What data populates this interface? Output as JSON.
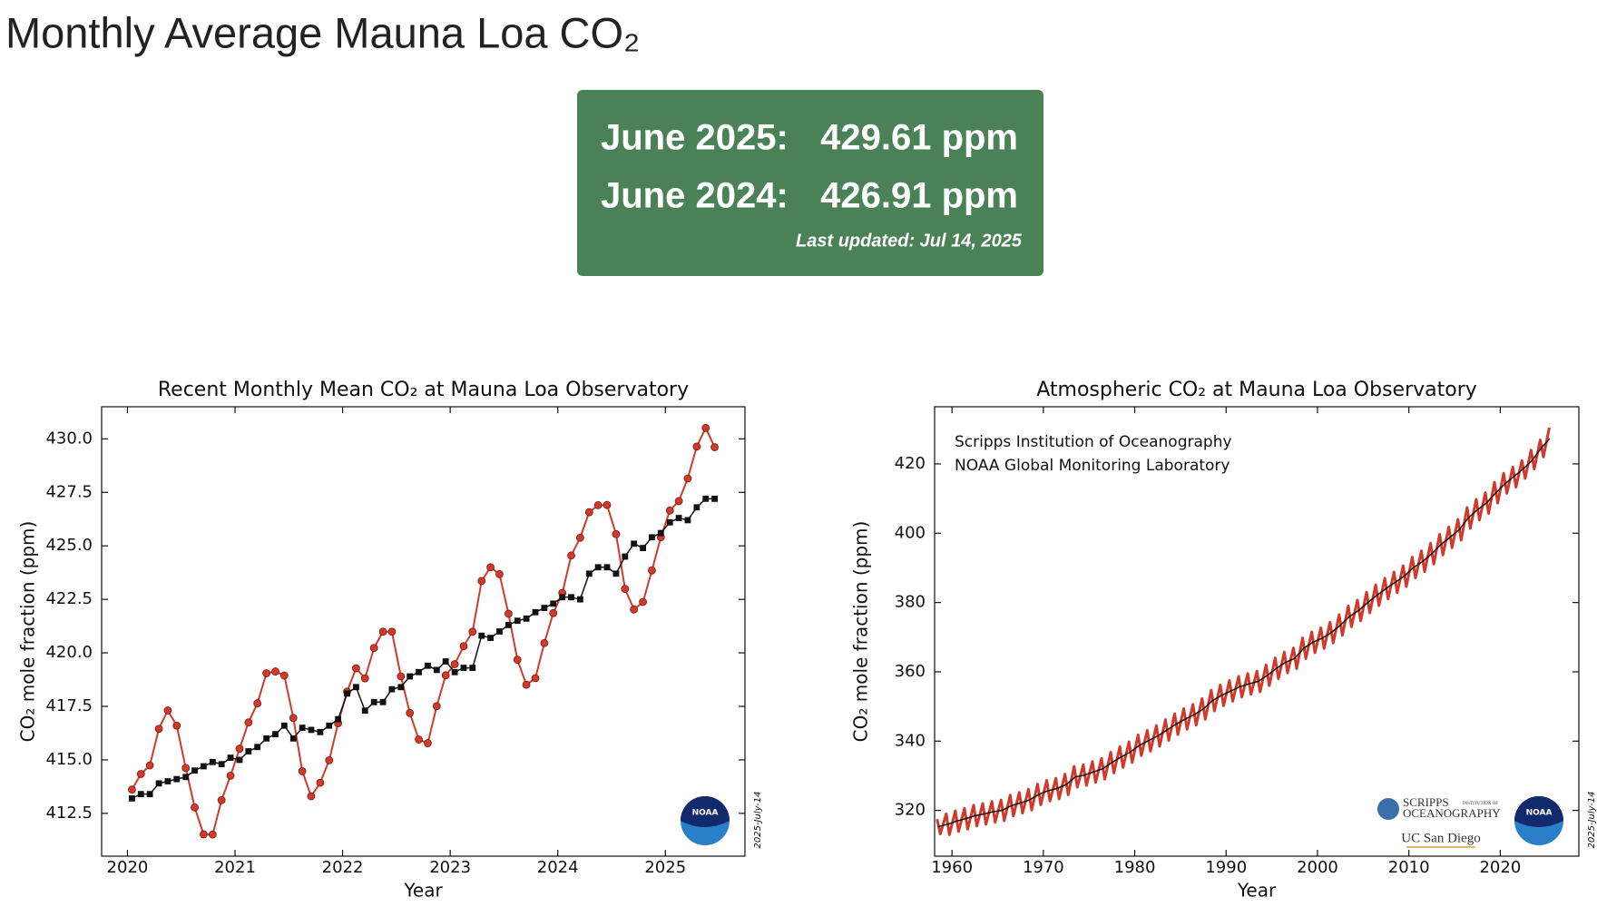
{
  "header": {
    "title": "Monthly Average Mauna Loa CO₂"
  },
  "summary": {
    "rows": [
      {
        "label": "June 2025:",
        "value": "429.61 ppm"
      },
      {
        "label": "June 2024:",
        "value": "426.91 ppm"
      }
    ],
    "updated": "Last updated: Jul 14, 2025"
  },
  "chart_data": [
    {
      "type": "line",
      "title": "Recent Monthly Mean CO₂ at Mauna Loa Observatory",
      "x_label": "Year",
      "y_label": "CO₂ mole fraction (ppm)",
      "date_stamp": "2025-July-14",
      "noaa_logo": "NOAA",
      "xlim": [
        2019.76,
        2025.74
      ],
      "xticks": [
        2020,
        2021,
        2022,
        2023,
        2024,
        2025
      ],
      "ylim": [
        410.5,
        431.5
      ],
      "yticks": [
        {
          "value": 412.5,
          "label": "412.5"
        },
        {
          "value": 415,
          "label": "415.0"
        },
        {
          "value": 417.5,
          "label": "417.5"
        },
        {
          "value": 420,
          "label": "420.0"
        },
        {
          "value": 422.5,
          "label": "422.5"
        },
        {
          "value": 425,
          "label": "425.0"
        },
        {
          "value": 427.5,
          "label": "427.5"
        },
        {
          "value": 430,
          "label": "430.0"
        }
      ],
      "x": [
        2020.042,
        2020.125,
        2020.208,
        2020.292,
        2020.375,
        2020.458,
        2020.542,
        2020.625,
        2020.708,
        2020.792,
        2020.875,
        2020.958,
        2021.042,
        2021.125,
        2021.208,
        2021.292,
        2021.375,
        2021.458,
        2021.542,
        2021.625,
        2021.708,
        2021.792,
        2021.875,
        2021.958,
        2022.042,
        2022.125,
        2022.208,
        2022.292,
        2022.375,
        2022.458,
        2022.542,
        2022.625,
        2022.708,
        2022.792,
        2022.875,
        2022.958,
        2023.042,
        2023.125,
        2023.208,
        2023.292,
        2023.375,
        2023.458,
        2023.542,
        2023.625,
        2023.708,
        2023.792,
        2023.875,
        2023.958,
        2024.042,
        2024.125,
        2024.208,
        2024.292,
        2024.375,
        2024.458,
        2024.542,
        2024.625,
        2024.708,
        2024.792,
        2024.875,
        2024.958,
        2025.042,
        2025.125,
        2025.208,
        2025.292,
        2025.375,
        2025.458
      ],
      "series": [
        {
          "color": "#d13a2a",
          "marker": "circle",
          "line_width": 2,
          "values": [
            413.61,
            414.34,
            414.74,
            416.45,
            417.31,
            416.6,
            414.62,
            412.78,
            411.52,
            411.51,
            413.12,
            414.26,
            415.52,
            416.75,
            417.64,
            419.05,
            419.13,
            418.94,
            416.96,
            414.47,
            413.3,
            413.93,
            414.98,
            416.71,
            418.19,
            419.28,
            418.81,
            420.23,
            420.99,
            420.99,
            418.9,
            417.19,
            415.95,
            415.78,
            417.51,
            418.95,
            419.47,
            420.31,
            420.99,
            423.36,
            424.0,
            423.68,
            421.83,
            419.68,
            418.51,
            418.82,
            420.46,
            421.86,
            422.8,
            424.55,
            425.38,
            426.57,
            426.9,
            426.91,
            425.55,
            422.99,
            422.03,
            422.38,
            423.85,
            425.4,
            426.65,
            427.09,
            428.15,
            429.64,
            430.51,
            429.61
          ]
        },
        {
          "color": "#111111",
          "marker": "square",
          "line_width": 1.5,
          "values": [
            413.2,
            413.4,
            413.4,
            413.9,
            414.0,
            414.1,
            414.2,
            414.5,
            414.7,
            414.9,
            414.8,
            415.1,
            415.0,
            415.4,
            415.6,
            416.0,
            416.2,
            416.6,
            416.0,
            416.5,
            416.4,
            416.3,
            416.6,
            416.9,
            418.1,
            418.4,
            417.3,
            417.7,
            417.7,
            418.3,
            418.4,
            418.9,
            419.1,
            419.4,
            419.2,
            419.6,
            419.1,
            419.3,
            419.3,
            420.8,
            420.7,
            421.0,
            421.3,
            421.5,
            421.6,
            421.9,
            422.1,
            422.3,
            422.6,
            422.6,
            422.5,
            423.7,
            424.0,
            424.0,
            423.7,
            424.5,
            425.1,
            424.9,
            425.4,
            425.6,
            426.1,
            426.3,
            426.2,
            426.8,
            427.2,
            427.2
          ]
        }
      ]
    },
    {
      "type": "line",
      "title": "Atmospheric CO₂ at Mauna Loa Observatory",
      "x_label": "Year",
      "y_label": "CO₂ mole fraction (ppm)",
      "date_stamp": "2025-July-14",
      "noaa_logo": "NOAA",
      "annotations": [
        "Scripps Institution of Oceanography",
        "NOAA Global Monitoring Laboratory"
      ],
      "scripps_logo": {
        "name": "SCRIPPS",
        "small": "INSTITUTION OF",
        "sub": "OCEANOGRAPHY",
        "university": "UC San Diego"
      },
      "xlim": [
        1958.1,
        2028.6
      ],
      "xticks": [
        1960,
        1970,
        1980,
        1990,
        2000,
        2010,
        2020
      ],
      "ylim": [
        306.8,
        436.5
      ],
      "yticks": [
        320,
        340,
        360,
        380,
        400,
        420
      ],
      "series": [
        {
          "color": "#d13a2a",
          "line_width": 3,
          "x": [
            1958.37,
            1958.72,
            1959.37,
            1959.72,
            1960.37,
            1960.72,
            1961.37,
            1961.72,
            1962.37,
            1962.72,
            1963.37,
            1963.72,
            1964.37,
            1964.72,
            1965.37,
            1965.72,
            1966.37,
            1966.72,
            1967.37,
            1967.72,
            1968.37,
            1968.72,
            1969.37,
            1969.72,
            1970.37,
            1970.72,
            1971.37,
            1971.72,
            1972.37,
            1972.72,
            1973.37,
            1973.72,
            1974.37,
            1974.72,
            1975.37,
            1975.72,
            1976.37,
            1976.72,
            1977.37,
            1977.72,
            1978.37,
            1978.72,
            1979.37,
            1979.72,
            1980.37,
            1980.72,
            1981.37,
            1981.72,
            1982.37,
            1982.72,
            1983.37,
            1983.72,
            1984.37,
            1984.72,
            1985.37,
            1985.72,
            1986.37,
            1986.72,
            1987.37,
            1987.72,
            1988.37,
            1988.72,
            1989.37,
            1989.72,
            1990.37,
            1990.72,
            1991.37,
            1991.72,
            1992.37,
            1992.72,
            1993.37,
            1993.72,
            1994.37,
            1994.72,
            1995.37,
            1995.72,
            1996.37,
            1996.72,
            1997.37,
            1997.72,
            1998.37,
            1998.72,
            1999.37,
            1999.72,
            2000.37,
            2000.72,
            2001.37,
            2001.72,
            2002.37,
            2002.72,
            2003.37,
            2003.72,
            2004.37,
            2004.72,
            2005.37,
            2005.72,
            2006.37,
            2006.72,
            2007.37,
            2007.72,
            2008.37,
            2008.72,
            2009.37,
            2009.72,
            2010.37,
            2010.72,
            2011.37,
            2011.72,
            2012.37,
            2012.72,
            2013.37,
            2013.72,
            2014.37,
            2014.72,
            2015.37,
            2015.72,
            2016.37,
            2016.72,
            2017.37,
            2017.72,
            2018.37,
            2018.72,
            2019.37,
            2019.72,
            2020.37,
            2020.72,
            2021.37,
            2021.72,
            2022.37,
            2022.72,
            2023.37,
            2023.72,
            2024.37,
            2024.72,
            2025.37
          ],
          "values": [
            317.5,
            313.2,
            319.0,
            313.0,
            319.9,
            313.9,
            320.6,
            314.6,
            321.5,
            315.5,
            322.0,
            316.0,
            322.6,
            316.6,
            323.0,
            317.0,
            324.4,
            318.4,
            325.2,
            319.2,
            326.1,
            320.1,
            327.6,
            321.6,
            328.7,
            322.7,
            329.3,
            323.3,
            330.5,
            324.5,
            332.7,
            326.7,
            333.2,
            327.2,
            334.1,
            328.1,
            335.0,
            329.0,
            336.8,
            330.8,
            338.4,
            332.4,
            339.8,
            333.8,
            341.8,
            335.8,
            343.1,
            337.1,
            344.5,
            338.5,
            346.2,
            340.2,
            347.9,
            341.9,
            349.4,
            343.4,
            350.6,
            344.6,
            352.3,
            346.3,
            354.7,
            348.7,
            356.2,
            350.2,
            357.5,
            351.5,
            358.7,
            352.7,
            359.5,
            353.5,
            360.2,
            354.2,
            362.0,
            356.0,
            364.0,
            358.0,
            365.7,
            359.7,
            366.9,
            360.9,
            369.8,
            363.8,
            371.5,
            365.5,
            372.7,
            366.7,
            374.3,
            368.3,
            376.5,
            370.5,
            379.0,
            373.0,
            380.7,
            374.7,
            383.0,
            377.0,
            385.1,
            379.1,
            387.0,
            381.0,
            388.8,
            382.8,
            390.6,
            384.6,
            393.1,
            387.1,
            394.9,
            388.9,
            397.1,
            391.1,
            399.7,
            393.7,
            401.8,
            395.8,
            404.0,
            398.0,
            407.4,
            401.4,
            409.8,
            403.8,
            411.7,
            405.7,
            414.7,
            408.7,
            417.3,
            411.5,
            419.1,
            413.3,
            421.0,
            415.8,
            424.0,
            418.5,
            426.9,
            422.0,
            430.5
          ]
        },
        {
          "color": "#111111",
          "line_width": 1.5,
          "x": [
            1958.5,
            1959.5,
            1960.5,
            1961.5,
            1962.5,
            1963.5,
            1964.5,
            1965.5,
            1966.5,
            1967.5,
            1968.5,
            1969.5,
            1970.5,
            1971.5,
            1972.5,
            1973.5,
            1974.5,
            1975.5,
            1976.5,
            1977.5,
            1978.5,
            1979.5,
            1980.5,
            1981.5,
            1982.5,
            1983.5,
            1984.5,
            1985.5,
            1986.5,
            1987.5,
            1988.5,
            1989.5,
            1990.5,
            1991.5,
            1992.5,
            1993.5,
            1994.5,
            1995.5,
            1996.5,
            1997.5,
            1998.5,
            1999.5,
            2000.5,
            2001.5,
            2002.5,
            2003.5,
            2004.5,
            2005.5,
            2006.5,
            2007.5,
            2008.5,
            2009.5,
            2010.5,
            2011.5,
            2012.5,
            2013.5,
            2014.5,
            2015.5,
            2016.5,
            2017.5,
            2018.5,
            2019.5,
            2020.5,
            2021.5,
            2022.5,
            2023.5,
            2024.5,
            2025.4
          ],
          "values": [
            315.3,
            315.98,
            316.91,
            317.64,
            318.45,
            318.99,
            319.62,
            320.04,
            321.37,
            322.18,
            323.05,
            324.62,
            325.68,
            326.32,
            327.46,
            329.68,
            330.19,
            331.12,
            332.03,
            333.84,
            335.41,
            336.84,
            338.76,
            340.12,
            341.48,
            343.15,
            344.87,
            346.35,
            347.61,
            349.31,
            351.69,
            353.2,
            354.45,
            355.7,
            356.54,
            357.21,
            358.96,
            360.97,
            362.74,
            363.88,
            366.84,
            368.54,
            369.71,
            371.32,
            373.45,
            375.98,
            377.7,
            379.98,
            382.09,
            384.02,
            385.83,
            387.64,
            390.1,
            391.85,
            394.06,
            396.74,
            398.81,
            401.01,
            404.41,
            406.76,
            408.72,
            411.65,
            414.21,
            416.41,
            418.53,
            421.08,
            424.61,
            427.3
          ]
        }
      ]
    }
  ]
}
